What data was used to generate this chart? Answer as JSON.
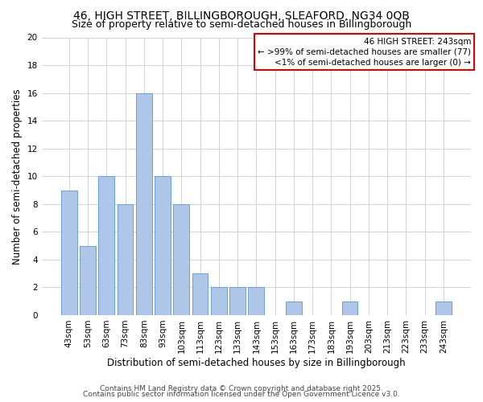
{
  "title": "46, HIGH STREET, BILLINGBOROUGH, SLEAFORD, NG34 0QB",
  "subtitle": "Size of property relative to semi-detached houses in Billingborough",
  "xlabel": "Distribution of semi-detached houses by size in Billingborough",
  "ylabel": "Number of semi-detached properties",
  "bar_labels": [
    "43sqm",
    "53sqm",
    "63sqm",
    "73sqm",
    "83sqm",
    "93sqm",
    "103sqm",
    "113sqm",
    "123sqm",
    "133sqm",
    "143sqm",
    "153sqm",
    "163sqm",
    "173sqm",
    "183sqm",
    "193sqm",
    "203sqm",
    "213sqm",
    "223sqm",
    "233sqm",
    "243sqm"
  ],
  "bar_values": [
    9,
    5,
    10,
    8,
    16,
    10,
    8,
    3,
    2,
    2,
    2,
    0,
    1,
    0,
    0,
    1,
    0,
    0,
    0,
    0,
    1
  ],
  "bar_color": "#aec6e8",
  "bar_edge_color": "#6a9fd8",
  "ylim": [
    0,
    20
  ],
  "yticks": [
    0,
    2,
    4,
    6,
    8,
    10,
    12,
    14,
    16,
    18,
    20
  ],
  "legend_title": "46 HIGH STREET: 243sqm",
  "legend_line1": "← >99% of semi-detached houses are smaller (77)",
  "legend_line2": "<1% of semi-detached houses are larger (0) →",
  "legend_box_color": "#dd0000",
  "footer1": "Contains HM Land Registry data © Crown copyright and database right 2025.",
  "footer2": "Contains public sector information licensed under the Open Government Licence v3.0.",
  "bg_color": "#ffffff",
  "grid_color": "#cccccc",
  "title_fontsize": 10,
  "subtitle_fontsize": 9,
  "axis_label_fontsize": 8.5,
  "tick_fontsize": 7.5,
  "legend_fontsize": 7.5,
  "footer_fontsize": 6.5
}
